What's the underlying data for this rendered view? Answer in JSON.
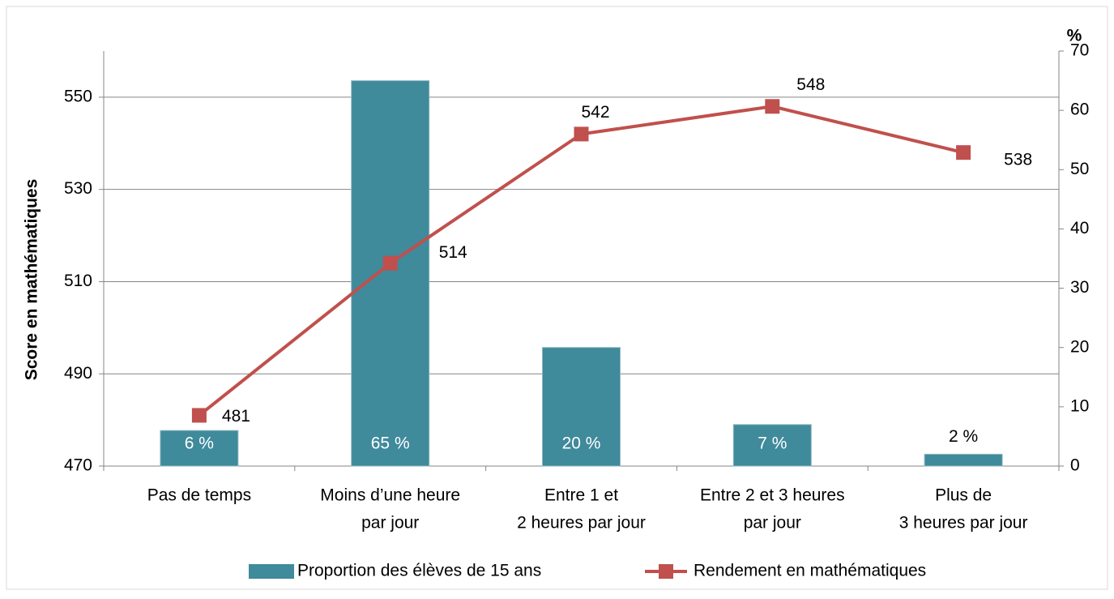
{
  "chart_data": {
    "type": "bar_line",
    "y_label": "Score en mathématiques",
    "y2_label": "%",
    "categories": [
      [
        "Pas de temps"
      ],
      [
        "Moins d’une heure",
        "par jour"
      ],
      [
        "Entre 1 et",
        "2 heures par jour"
      ],
      [
        "Entre 2 et 3 heures",
        "par jour"
      ],
      [
        "Plus de",
        "3 heures par jour"
      ]
    ],
    "series": [
      {
        "name": "Proportion des élèves de 15 ans",
        "type": "bar",
        "axis": "y2",
        "color": "#3f8a9b",
        "values": [
          6,
          65,
          20,
          7,
          2
        ],
        "value_labels": [
          "6 %",
          "65 %",
          "20 %",
          "7 %",
          "2 %"
        ]
      },
      {
        "name": "Rendement en mathématiques",
        "type": "line",
        "color": "#c0504d",
        "values": [
          481,
          514,
          542,
          548,
          538
        ]
      }
    ],
    "ylim": [
      470,
      560
    ],
    "yticks": [
      470,
      490,
      510,
      530,
      550
    ],
    "y2lim": [
      0,
      70
    ],
    "y2ticks": [
      0,
      10,
      20,
      30,
      40,
      50,
      60,
      70
    ],
    "grid": true,
    "legend": "bottom"
  }
}
